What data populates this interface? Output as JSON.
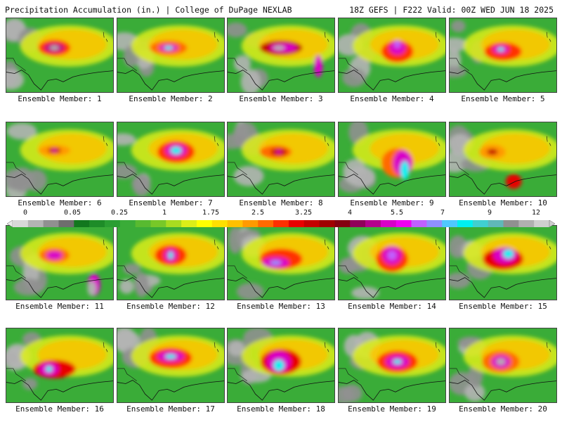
{
  "header": {
    "title": "Precipitation Accumulation (in.) | College of DuPage NEXLAB",
    "run_info": "18Z GEFS | F222 Valid: 00Z WED JUN 18 2025"
  },
  "colorbar": {
    "tick_labels": [
      "0",
      "0.05",
      "0.25",
      "1",
      "1.75",
      "2.5",
      "3.25",
      "4",
      "5.5",
      "7",
      "9",
      "12"
    ],
    "colors": [
      "#d8d8d8",
      "#b4b4b4",
      "#909090",
      "#6e6e6e",
      "#12781e",
      "#1e8c28",
      "#2a9e32",
      "#3aac38",
      "#58ba30",
      "#78c828",
      "#a8dc20",
      "#dcee18",
      "#ffff00",
      "#ffe000",
      "#ffc000",
      "#ff9a00",
      "#ff6a00",
      "#ff3000",
      "#e80000",
      "#c40000",
      "#a00000",
      "#840010",
      "#90005a",
      "#b4008c",
      "#d800c8",
      "#f000f0",
      "#c060ff",
      "#9090ff",
      "#50c8ff",
      "#00f0f0",
      "#40d0d0",
      "#60b8b8",
      "#909090",
      "#b0b0b0",
      "#cfcfcf"
    ]
  },
  "members": [
    {
      "label": "Ensemble Member: 1",
      "blobs": [
        [
          0.45,
          0.4,
          0.3,
          0.22,
          "#ff3000"
        ],
        [
          0.45,
          0.4,
          0.18,
          0.12,
          "#b4008c"
        ],
        [
          0.45,
          0.4,
          0.08,
          0.06,
          "#b0b0b0"
        ]
      ]
    },
    {
      "label": "Ensemble Member: 2",
      "blobs": [
        [
          0.48,
          0.4,
          0.35,
          0.2,
          "#ff6a00"
        ],
        [
          0.48,
          0.4,
          0.18,
          0.1,
          "#d800c8"
        ],
        [
          0.48,
          0.4,
          0.08,
          0.05,
          "#00f0f0"
        ]
      ]
    },
    {
      "label": "Ensemble Member: 3",
      "blobs": [
        [
          0.5,
          0.4,
          0.4,
          0.2,
          "#c40000"
        ],
        [
          0.52,
          0.4,
          0.25,
          0.12,
          "#d800c8"
        ],
        [
          0.48,
          0.4,
          0.1,
          0.06,
          "#b0b0b0"
        ],
        [
          0.85,
          0.65,
          0.08,
          0.3,
          "#d800c8"
        ]
      ]
    },
    {
      "label": "Ensemble Member: 4",
      "blobs": [
        [
          0.55,
          0.45,
          0.3,
          0.3,
          "#ff3000"
        ],
        [
          0.55,
          0.4,
          0.15,
          0.18,
          "#d800c8"
        ],
        [
          0.55,
          0.35,
          0.06,
          0.1,
          "#c060ff"
        ]
      ]
    },
    {
      "label": "Ensemble Member: 5",
      "blobs": [
        [
          0.5,
          0.45,
          0.35,
          0.25,
          "#ff3000"
        ],
        [
          0.48,
          0.42,
          0.15,
          0.12,
          "#d800c8"
        ],
        [
          0.48,
          0.42,
          0.06,
          0.05,
          "#00f0f0"
        ]
      ]
    },
    {
      "label": "Ensemble Member: 6",
      "blobs": [
        [
          0.45,
          0.38,
          0.3,
          0.15,
          "#ff9a00"
        ],
        [
          0.45,
          0.38,
          0.12,
          0.08,
          "#c40000"
        ],
        [
          0.45,
          0.38,
          0.04,
          0.04,
          "#d800c8"
        ]
      ]
    },
    {
      "label": "Ensemble Member: 7",
      "blobs": [
        [
          0.55,
          0.4,
          0.35,
          0.3,
          "#ff3000"
        ],
        [
          0.55,
          0.38,
          0.2,
          0.18,
          "#d800c8"
        ],
        [
          0.55,
          0.38,
          0.1,
          0.1,
          "#00f0f0"
        ]
      ]
    },
    {
      "label": "Ensemble Member: 8",
      "blobs": [
        [
          0.45,
          0.4,
          0.3,
          0.18,
          "#ff6a00"
        ],
        [
          0.48,
          0.4,
          0.15,
          0.1,
          "#c40000"
        ],
        [
          0.48,
          0.4,
          0.05,
          0.04,
          "#d800c8"
        ]
      ]
    },
    {
      "label": "Ensemble Member: 9",
      "blobs": [
        [
          0.55,
          0.55,
          0.3,
          0.4,
          "#ff6a00"
        ],
        [
          0.6,
          0.55,
          0.18,
          0.35,
          "#d800c8"
        ],
        [
          0.62,
          0.65,
          0.08,
          0.25,
          "#00f0f0"
        ]
      ]
    },
    {
      "label": "Ensemble Member: 10",
      "blobs": [
        [
          0.4,
          0.4,
          0.25,
          0.2,
          "#ff9a00"
        ],
        [
          0.4,
          0.4,
          0.1,
          0.08,
          "#c40000"
        ],
        [
          0.6,
          0.8,
          0.15,
          0.2,
          "#e80000"
        ]
      ]
    },
    {
      "label": "Ensemble Member: 11",
      "blobs": [
        [
          0.45,
          0.4,
          0.28,
          0.2,
          "#ff6a00"
        ],
        [
          0.45,
          0.4,
          0.15,
          0.12,
          "#d800c8"
        ],
        [
          0.82,
          0.8,
          0.12,
          0.3,
          "#d800c8"
        ],
        [
          0.8,
          0.85,
          0.08,
          0.2,
          "#b0b0b0"
        ]
      ]
    },
    {
      "label": "Ensemble Member: 12",
      "blobs": [
        [
          0.5,
          0.4,
          0.3,
          0.28,
          "#ff3000"
        ],
        [
          0.5,
          0.4,
          0.12,
          0.18,
          "#d800c8"
        ],
        [
          0.5,
          0.4,
          0.04,
          0.1,
          "#00f0f0"
        ]
      ]
    },
    {
      "label": "Ensemble Member: 13",
      "blobs": [
        [
          0.5,
          0.45,
          0.4,
          0.28,
          "#ff3000"
        ],
        [
          0.45,
          0.5,
          0.25,
          0.15,
          "#d800c8"
        ],
        [
          0.45,
          0.5,
          0.1,
          0.06,
          "#9090ff"
        ]
      ]
    },
    {
      "label": "Ensemble Member: 14",
      "blobs": [
        [
          0.5,
          0.45,
          0.3,
          0.35,
          "#ff3000"
        ],
        [
          0.5,
          0.4,
          0.18,
          0.25,
          "#d800c8"
        ],
        [
          0.5,
          0.4,
          0.08,
          0.12,
          "#c060ff"
        ]
      ]
    },
    {
      "label": "Ensemble Member: 15",
      "blobs": [
        [
          0.5,
          0.45,
          0.38,
          0.3,
          "#e80000"
        ],
        [
          0.52,
          0.4,
          0.22,
          0.22,
          "#d800c8"
        ],
        [
          0.55,
          0.38,
          0.1,
          0.12,
          "#00f0f0"
        ]
      ]
    },
    {
      "label": "Ensemble Member: 16",
      "blobs": [
        [
          0.45,
          0.55,
          0.4,
          0.25,
          "#e80000"
        ],
        [
          0.4,
          0.55,
          0.18,
          0.18,
          "#d800c8"
        ],
        [
          0.4,
          0.55,
          0.06,
          0.08,
          "#00f0f0"
        ]
      ]
    },
    {
      "label": "Ensemble Member: 17",
      "blobs": [
        [
          0.5,
          0.4,
          0.4,
          0.28,
          "#ff3000"
        ],
        [
          0.5,
          0.38,
          0.25,
          0.15,
          "#d800c8"
        ],
        [
          0.5,
          0.38,
          0.1,
          0.06,
          "#00f0f0"
        ]
      ]
    },
    {
      "label": "Ensemble Member: 18",
      "blobs": [
        [
          0.5,
          0.45,
          0.38,
          0.35,
          "#e80000"
        ],
        [
          0.48,
          0.45,
          0.22,
          0.28,
          "#d800c8"
        ],
        [
          0.48,
          0.5,
          0.1,
          0.15,
          "#00f0f0"
        ]
      ]
    },
    {
      "label": "Ensemble Member: 19",
      "blobs": [
        [
          0.55,
          0.45,
          0.38,
          0.3,
          "#ff3000"
        ],
        [
          0.55,
          0.45,
          0.22,
          0.18,
          "#d800c8"
        ],
        [
          0.55,
          0.45,
          0.08,
          0.06,
          "#00f0f0"
        ]
      ]
    },
    {
      "label": "Ensemble Member: 20",
      "blobs": [
        [
          0.48,
          0.45,
          0.35,
          0.3,
          "#ff6a00"
        ],
        [
          0.48,
          0.45,
          0.18,
          0.18,
          "#d800c8"
        ],
        [
          0.48,
          0.45,
          0.08,
          0.08,
          "#b0b0b0"
        ]
      ]
    }
  ]
}
